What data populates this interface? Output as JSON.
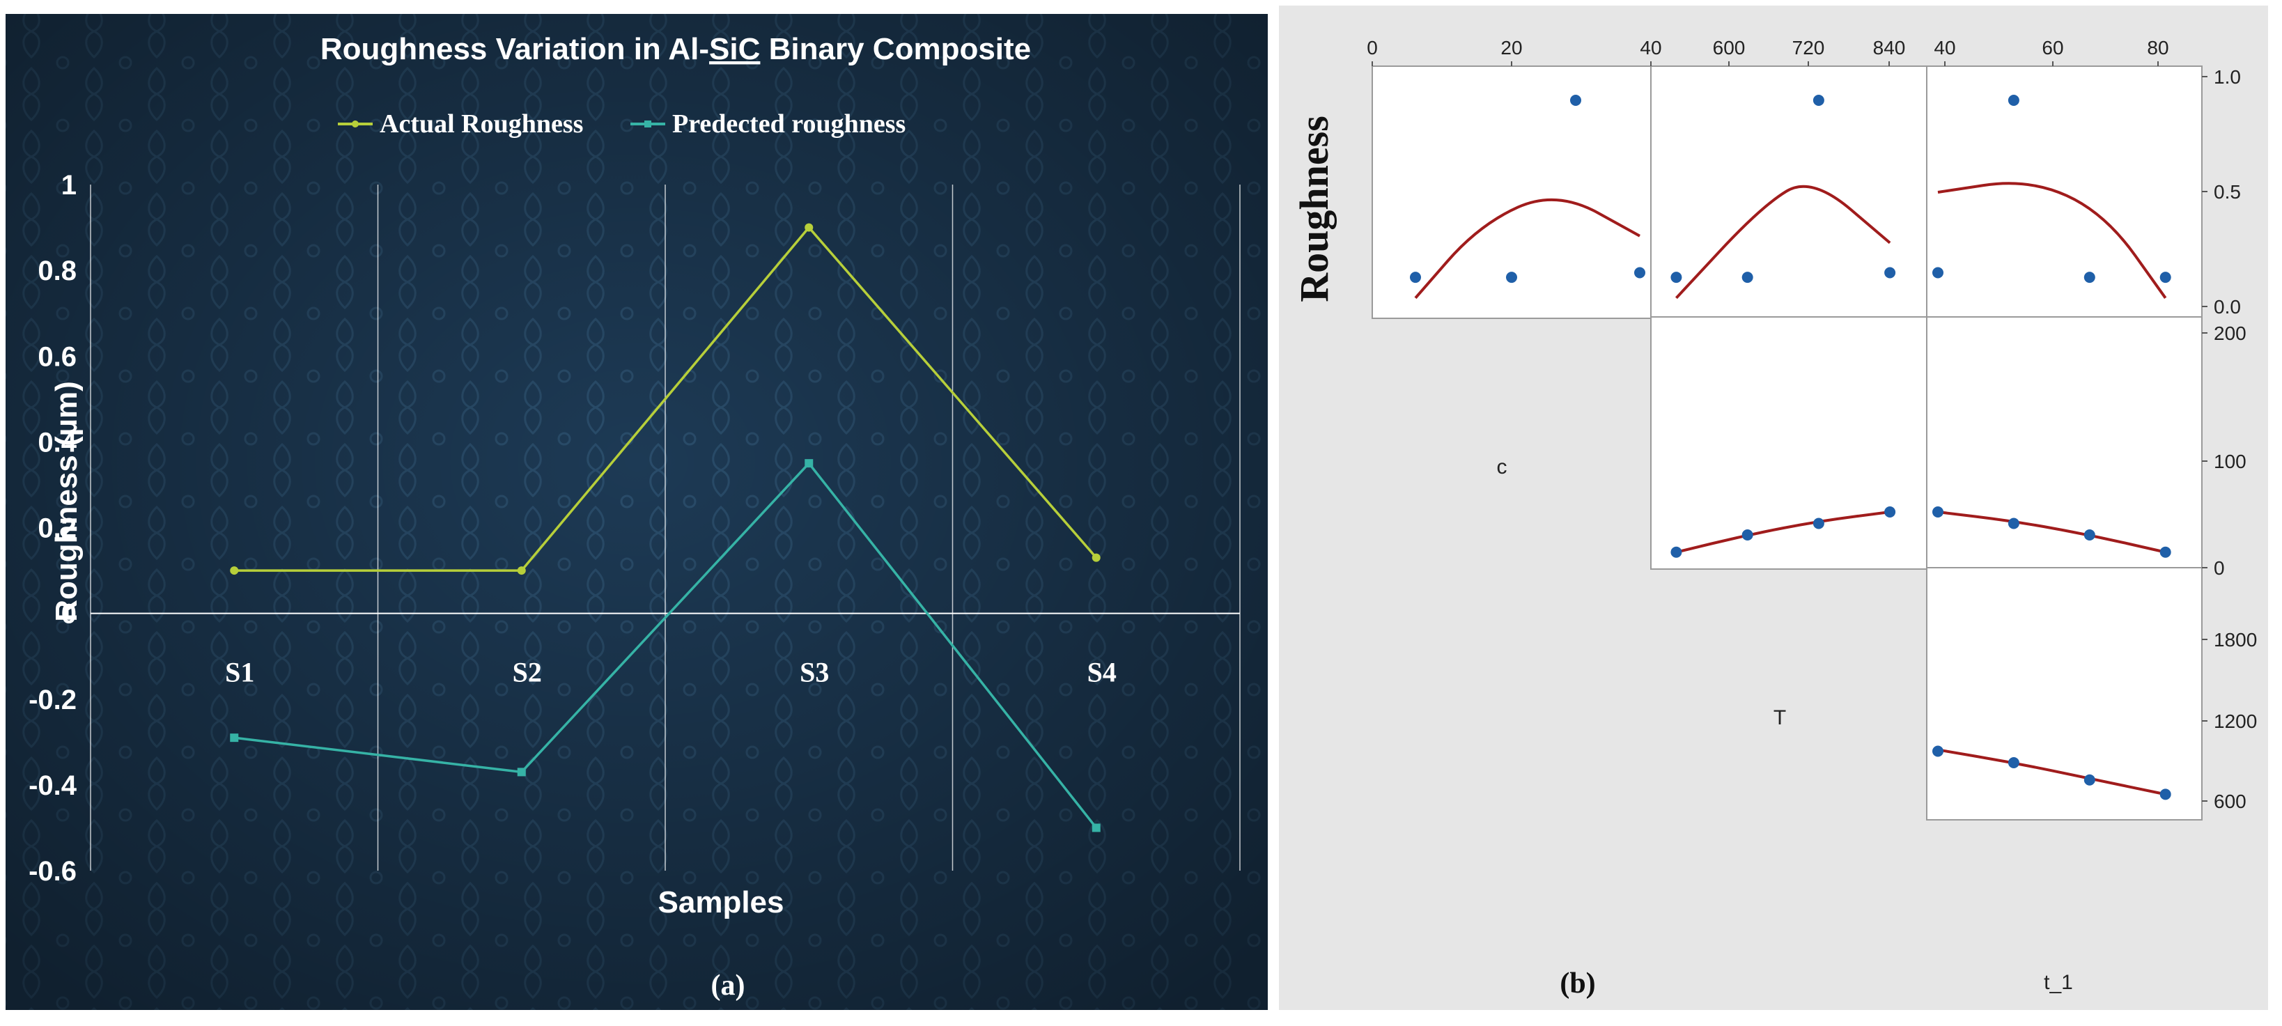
{
  "panel_a": {
    "caption": "(a)",
    "title_parts": [
      "Roughness Variation in Al-",
      "SiC",
      " Binary Composite"
    ],
    "legend": [
      "Actual Roughness",
      "Predected roughness"
    ],
    "colors": {
      "actual": "#b7cf3a",
      "predicted": "#36b3a6",
      "background": "#1d3a55",
      "text": "#ffffff"
    }
  },
  "panel_b": {
    "caption": "(b)",
    "response_label": "Roughness",
    "variable_labels": [
      "c",
      "T",
      "t_1"
    ],
    "colors": {
      "background": "#e6e6e6",
      "fit": "#a01c1c",
      "points": "#1f5fa8"
    }
  },
  "chart_data": [
    {
      "type": "line",
      "title": "Roughness Variation in Al-SiC Binary Composite",
      "xlabel": "Samples",
      "ylabel": "Roughness (µm)",
      "categories": [
        "S1",
        "S2",
        "S3",
        "S4"
      ],
      "ylim": [
        -0.6,
        1
      ],
      "yticks": [
        "1",
        "0.8",
        "0.6",
        "0.4",
        "0.2",
        "0",
        "-0.2",
        "-0.4",
        "-0.6"
      ],
      "grid": "vertical",
      "legend_position": "top",
      "series": [
        {
          "name": "Actual Roughness",
          "values": [
            0.1,
            0.1,
            0.9,
            0.13
          ]
        },
        {
          "name": "Predected roughness",
          "values": [
            -0.29,
            -0.37,
            0.35,
            -0.5
          ]
        }
      ]
    },
    {
      "type": "scatter",
      "subtype": "matrix plot with quadratic fits",
      "response": "Roughness",
      "variables": [
        "c",
        "T",
        "t_1"
      ],
      "top_axis_ticks": {
        "c": [
          "0",
          "20",
          "40"
        ],
        "T": [
          "600",
          "720",
          "840"
        ],
        "t_1": [
          "40",
          "60",
          "80"
        ]
      },
      "right_axis_ticks": {
        "Roughness": [
          "1.0",
          "0.5",
          "0.0"
        ],
        "c": [
          "200",
          "100",
          "0"
        ],
        "T": [
          "1800",
          "1200",
          "600"
        ]
      },
      "panels": [
        {
          "x": "c",
          "y": "Roughness",
          "xlim": [
            0,
            40
          ],
          "ylim": [
            0,
            1
          ],
          "points": [
            [
              5,
              0.13
            ],
            [
              20,
              0.13
            ],
            [
              30,
              0.9
            ],
            [
              40,
              0.15
            ]
          ],
          "fit": [
            [
              5,
              0.04
            ],
            [
              15,
              0.36
            ],
            [
              27,
              0.51
            ],
            [
              40,
              0.31
            ]
          ]
        },
        {
          "x": "T",
          "y": "Roughness",
          "xlim": [
            480,
            840
          ],
          "ylim": [
            0,
            1
          ],
          "points": [
            [
              500,
              0.13
            ],
            [
              600,
              0.13
            ],
            [
              700,
              0.9
            ],
            [
              800,
              0.15
            ]
          ],
          "fit": [
            [
              500,
              0.04
            ],
            [
              620,
              0.44
            ],
            [
              690,
              0.57
            ],
            [
              800,
              0.28
            ]
          ]
        },
        {
          "x": "t_1",
          "y": "Roughness",
          "xlim": [
            30,
            80
          ],
          "ylim": [
            0,
            1
          ],
          "points": [
            [
              30,
              0.15
            ],
            [
              45,
              0.9
            ],
            [
              60,
              0.13
            ],
            [
              75,
              0.13
            ]
          ],
          "fit": [
            [
              30,
              0.5
            ],
            [
              48,
              0.56
            ],
            [
              63,
              0.41
            ],
            [
              75,
              0.04
            ]
          ]
        },
        {
          "x": "T",
          "y": "c",
          "xlim": [
            480,
            840
          ],
          "ylim": [
            0,
            200
          ],
          "points": [
            [
              500,
              5
            ],
            [
              600,
              20
            ],
            [
              700,
              30
            ],
            [
              800,
              40
            ]
          ],
          "fit": [
            [
              500,
              5
            ],
            [
              600,
              20
            ],
            [
              700,
              32
            ],
            [
              800,
              40
            ]
          ]
        },
        {
          "x": "t_1",
          "y": "c",
          "xlim": [
            30,
            80
          ],
          "ylim": [
            0,
            200
          ],
          "points": [
            [
              30,
              40
            ],
            [
              45,
              30
            ],
            [
              60,
              20
            ],
            [
              75,
              5
            ]
          ],
          "fit": [
            [
              30,
              40
            ],
            [
              45,
              32
            ],
            [
              60,
              20
            ],
            [
              75,
              5
            ]
          ]
        },
        {
          "x": "t_1",
          "y": "T",
          "xlim": [
            30,
            80
          ],
          "ylim": [
            400,
            2000
          ],
          "points": [
            [
              30,
              800
            ],
            [
              45,
              720
            ],
            [
              60,
              600
            ],
            [
              75,
              500
            ]
          ],
          "fit": [
            [
              30,
              810
            ],
            [
              45,
              720
            ],
            [
              60,
              610
            ],
            [
              75,
              500
            ]
          ]
        }
      ]
    }
  ]
}
